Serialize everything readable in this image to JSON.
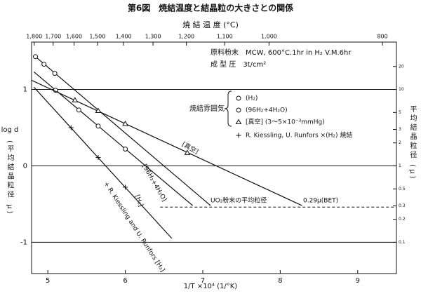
{
  "chart_data": {
    "type": "scatter",
    "title": "第6図　焼結温度と結晶粒の大きさとの関係",
    "x2label": "焼 結 温 度 (°C)",
    "xlabel": "1/T ×10⁴ (1/°K)",
    "ylabel": "log d",
    "ylabel_sub": "(平均結晶粒径 μ)",
    "y2label": "平均結晶粒径 (μ)",
    "xlim": [
      4.79,
      9.5
    ],
    "xticks": [
      5,
      6,
      7,
      8,
      9
    ],
    "ylim": [
      -1.41,
      1.62
    ],
    "yticks": [
      {
        "value": -1,
        "label": "-1"
      },
      0,
      1
    ],
    "grid": true,
    "y2lim": [
      0.039,
      41.7
    ],
    "y2ticks": [
      0.1,
      0.2,
      0.3,
      0.5,
      1,
      2,
      3,
      5,
      10,
      20
    ],
    "x2ticks": [
      {
        "value": 1800,
        "label": "1,800"
      },
      {
        "value": 1700,
        "label": "1,700"
      },
      {
        "value": 1600,
        "label": "1,600"
      },
      {
        "value": 1500,
        "label": "1,500"
      },
      {
        "value": 1400,
        "label": "1,400"
      },
      {
        "value": 1300,
        "label": "1,300"
      },
      {
        "value": 1200,
        "label": "1,200"
      },
      {
        "value": 1100,
        "label": "1,100"
      },
      {
        "value": 1000,
        "label": "1,000"
      },
      {
        "value": 800,
        "label": "800"
      }
    ],
    "notes": [
      "原料粉末　MCW, 600°C.1hr in H₂ V.M.6hr",
      "成 型 圧　3t/cm²"
    ],
    "legend_title": "焼結雰囲気",
    "series": [
      {
        "name": "(H₂)",
        "marker": "circle",
        "color": "#111111",
        "x": [
          5.1,
          5.4,
          5.65,
          6.0
        ],
        "values": [
          0.99,
          0.73,
          0.52,
          0.22
        ],
        "line_label": "[H₂]",
        "fit": {
          "x": [
            4.82,
            6.87
          ],
          "values": [
            1.23,
            -0.52
          ]
        }
      },
      {
        "name": "(96H₂+4H₂O)",
        "marker": "circle",
        "color": "#111111",
        "x": [
          4.84,
          4.95,
          5.09
        ],
        "values": [
          1.43,
          1.33,
          1.21
        ],
        "line_label": "[96H₂+4H₂O]",
        "fit": {
          "x": [
            4.84,
            7.1
          ],
          "values": [
            1.43,
            -0.52
          ]
        }
      },
      {
        "name": "[真空] (3～5×10⁻³mmHg)",
        "marker": "triangle",
        "color": "#111111",
        "x": [
          5.35,
          5.65,
          6.0,
          6.8
        ],
        "values": [
          0.86,
          0.72,
          0.55,
          0.17
        ],
        "line_label": "[真空]",
        "fit": {
          "x": [
            4.79,
            8.28
          ],
          "values": [
            1.12,
            -0.52
          ]
        }
      },
      {
        "name": "R. Kiessling, U. Runfors ×(H₂) 焼結",
        "marker": "plus",
        "color": "#111111",
        "x": [
          5.3,
          5.65,
          6.0
        ],
        "values": [
          0.5,
          0.11,
          -0.28
        ],
        "line_label": "+ R. Kiessling and U. Runfors [H₂]",
        "fit": {
          "x": [
            4.82,
            6.6
          ],
          "values": [
            1.03,
            -0.95
          ]
        }
      }
    ],
    "reference": {
      "label": "UO₂粉末の平均粒径",
      "value_label": "0.29μ(BET)",
      "y": -0.54,
      "x": [
        6.45,
        9.5
      ]
    }
  }
}
